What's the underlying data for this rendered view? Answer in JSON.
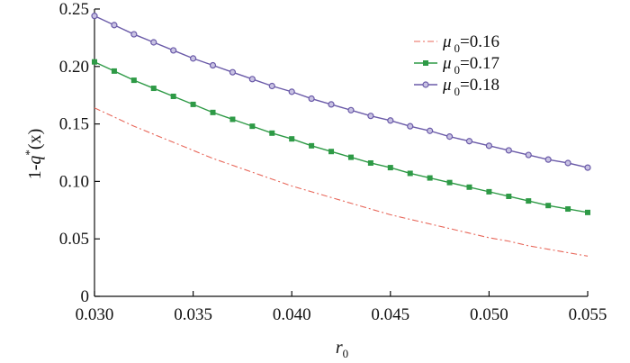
{
  "chart_data": {
    "type": "line",
    "title": "",
    "xlabel": "r",
    "xlabel_sub": "0",
    "ylabel_pre": "1-",
    "ylabel_q": "q",
    "ylabel_sup": "*",
    "ylabel_post": "(x)",
    "xlim": [
      0.03,
      0.055
    ],
    "ylim": [
      0,
      0.25
    ],
    "xticks": [
      "0.030",
      "0.035",
      "0.040",
      "0.045",
      "0.050",
      "0.055"
    ],
    "yticks": [
      "0",
      "0.05",
      "0.10",
      "0.15",
      "0.20",
      "0.25"
    ],
    "grid": false,
    "legend_position": "top-right",
    "x": [
      0.03,
      0.031,
      0.032,
      0.033,
      0.034,
      0.035,
      0.036,
      0.037,
      0.038,
      0.039,
      0.04,
      0.041,
      0.042,
      0.043,
      0.044,
      0.045,
      0.046,
      0.047,
      0.048,
      0.049,
      0.05,
      0.051,
      0.052,
      0.053,
      0.054,
      0.055
    ],
    "series": [
      {
        "legend_mu": "μ",
        "legend_sub": "0",
        "legend_value": "=0.16",
        "color": "#e8675a",
        "line_style": "dashdot",
        "marker": "none",
        "values": [
          0.164,
          0.156,
          0.148,
          0.141,
          0.134,
          0.127,
          0.12,
          0.114,
          0.108,
          0.102,
          0.096,
          0.091,
          0.086,
          0.081,
          0.076,
          0.071,
          0.067,
          0.063,
          0.059,
          0.055,
          0.051,
          0.048,
          0.044,
          0.041,
          0.038,
          0.035
        ]
      },
      {
        "legend_mu": "μ",
        "legend_sub": "0",
        "legend_value": "=0.17",
        "color": "#2e9a46",
        "line_style": "solid",
        "marker": "square",
        "values": [
          0.204,
          0.196,
          0.188,
          0.181,
          0.174,
          0.167,
          0.16,
          0.154,
          0.148,
          0.142,
          0.137,
          0.131,
          0.126,
          0.121,
          0.116,
          0.112,
          0.107,
          0.103,
          0.099,
          0.095,
          0.091,
          0.087,
          0.083,
          0.079,
          0.076,
          0.073
        ]
      },
      {
        "legend_mu": "μ",
        "legend_sub": "0",
        "legend_value": "=0.18",
        "color": "#6a5aa8",
        "line_style": "solid",
        "marker": "circle",
        "values": [
          0.244,
          0.236,
          0.228,
          0.221,
          0.214,
          0.207,
          0.201,
          0.195,
          0.189,
          0.183,
          0.178,
          0.172,
          0.167,
          0.162,
          0.157,
          0.153,
          0.148,
          0.144,
          0.139,
          0.135,
          0.131,
          0.127,
          0.123,
          0.119,
          0.116,
          0.112
        ]
      }
    ]
  }
}
